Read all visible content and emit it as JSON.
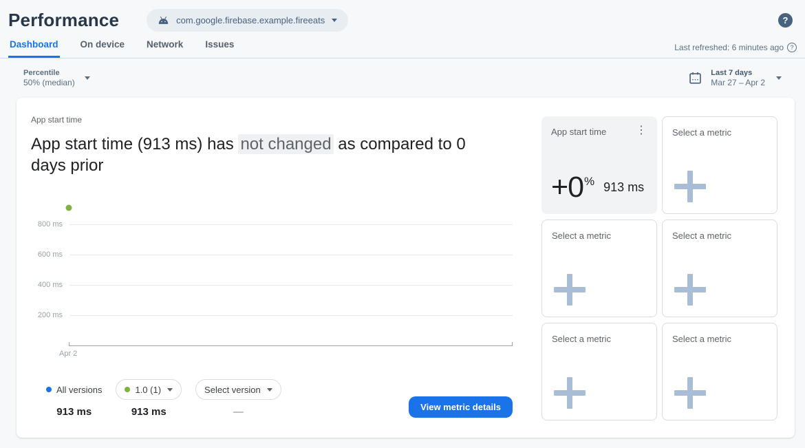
{
  "header": {
    "title": "Performance",
    "app_selector": {
      "app_id": "com.google.firebase.example.fireeats"
    },
    "help_label": "?"
  },
  "tab_bar": {
    "tabs": [
      {
        "label": "Dashboard",
        "active": true
      },
      {
        "label": "On device",
        "active": false
      },
      {
        "label": "Network",
        "active": false
      },
      {
        "label": "Issues",
        "active": false
      }
    ],
    "last_refreshed": "Last refreshed: 6 minutes ago",
    "help_label": "?"
  },
  "filter_bar": {
    "percentile": {
      "label": "Percentile",
      "value": "50% (median)"
    },
    "date_range": {
      "preset": "Last 7 days",
      "range": "Mar 27 – Apr 2"
    }
  },
  "main_card": {
    "metric_label": "App start time",
    "headline": {
      "before_highlight": "App start time (913 ms) has ",
      "highlight": "not changed",
      "after_highlight": " as compared to 0 days prior"
    },
    "legend": [
      {
        "label": "All versions",
        "value": "913 ms",
        "color": "#1a73e8",
        "style": "plain"
      },
      {
        "label": "1.0 (1)",
        "value": "913 ms",
        "color": "#7cb342",
        "style": "chip"
      },
      {
        "label": "Select version",
        "value": "—",
        "style": "chip"
      }
    ],
    "view_details_button": "View metric details"
  },
  "metric_grid": {
    "selected_card": {
      "title": "App start time",
      "delta": "+0",
      "delta_unit": "%",
      "value": "913 ms"
    },
    "placeholder_label": "Select a metric"
  },
  "chart_data": {
    "type": "scatter",
    "title": "App start time (913 ms) has not changed as compared to 0 days prior",
    "x": [
      "Apr 2"
    ],
    "series": [
      {
        "name": "All versions",
        "values": [
          913
        ],
        "color": "#1a73e8"
      },
      {
        "name": "1.0 (1)",
        "values": [
          913
        ],
        "color": "#7cb342"
      },
      {
        "name": "Select version",
        "values": [
          null
        ],
        "color": null
      }
    ],
    "y_unit": "ms",
    "yticks": [
      200,
      400,
      600,
      800
    ],
    "ylim": [
      0,
      1000
    ],
    "grid": true,
    "legend_position": "bottom",
    "visible_point": {
      "x": "Apr 2",
      "y": 913,
      "color": "#7cb342"
    }
  },
  "colors": {
    "accent_blue": "#1a73e8",
    "version_green": "#7cb342",
    "page_bg": "#f6f8f9",
    "selected_card_bg": "#f1f3f4",
    "card_border": "#dadce0",
    "plus_icon": "#a9bdd6"
  }
}
